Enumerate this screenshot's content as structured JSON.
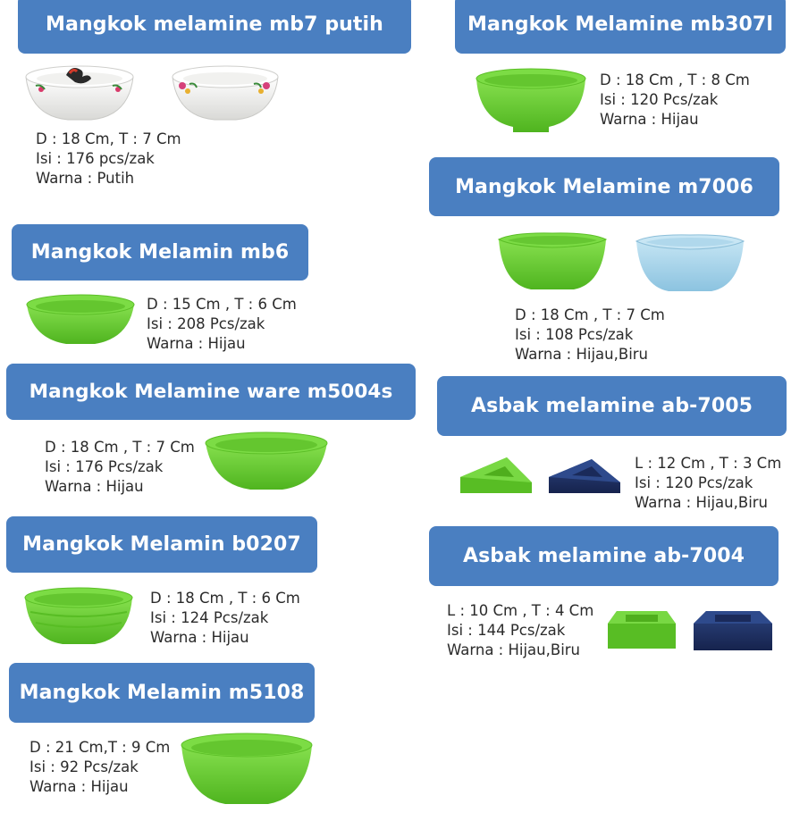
{
  "products": [
    {
      "title": "Mangkok melamine mb7 putih",
      "dim": "D : 18 Cm, T : 7 Cm",
      "isi": "Isi : 176 pcs/zak",
      "warna": "Warna : Putih"
    },
    {
      "title": "Mangkok Melamine mb307l",
      "dim": "D : 18 Cm , T : 8 Cm",
      "isi": "Isi : 120 Pcs/zak",
      "warna": "Warna  : Hijau"
    },
    {
      "title": "Mangkok Melamine m7006",
      "dim": "D : 18 Cm , T : 7 Cm",
      "isi": "Isi : 108 Pcs/zak",
      "warna": "Warna  : Hijau,Biru"
    },
    {
      "title": "Mangkok Melamin mb6",
      "dim": "D : 15 Cm , T : 6 Cm",
      "isi": "Isi : 208 Pcs/zak",
      "warna": "Warna  : Hijau"
    },
    {
      "title": "Mangkok Melamine ware m5004s",
      "dim": "D : 18 Cm , T : 7 Cm",
      "isi": "Isi : 176 Pcs/zak",
      "warna": "Warna  : Hijau"
    },
    {
      "title": "Asbak melamine ab-7005",
      "dim": "L : 12 Cm , T : 3 Cm",
      "isi": "Isi : 120 Pcs/zak",
      "warna": "Warna  : Hijau,Biru"
    },
    {
      "title": "Mangkok Melamin b0207",
      "dim": "D : 18  Cm , T : 6 Cm",
      "isi": "Isi : 124 Pcs/zak",
      "warna": "Warna  : Hijau"
    },
    {
      "title": "Asbak melamine ab-7004",
      "dim": "L : 10 Cm , T : 4 Cm",
      "isi": "Isi : 144 Pcs/zak",
      "warna": "Warna  : Hijau,Biru"
    },
    {
      "title": "Mangkok Melamin m5108",
      "dim": "D : 21 Cm,T : 9 Cm",
      "isi": "Isi : 92 Pcs/zak",
      "warna": "Warna  : Hijau"
    }
  ],
  "colors": {
    "header_bg": "#4a7fc1",
    "green": "#6fd23a",
    "blue_light": "#a6d4ec",
    "navy": "#22346a",
    "white_bowl": "#f2f2f0"
  },
  "icons": [
    "bowl-white-rooster",
    "bowl-white-floral",
    "bowl-green",
    "bowl-blue",
    "ashtray-triangle-green",
    "ashtray-triangle-navy",
    "ashtray-square-green",
    "ashtray-square-navy"
  ]
}
